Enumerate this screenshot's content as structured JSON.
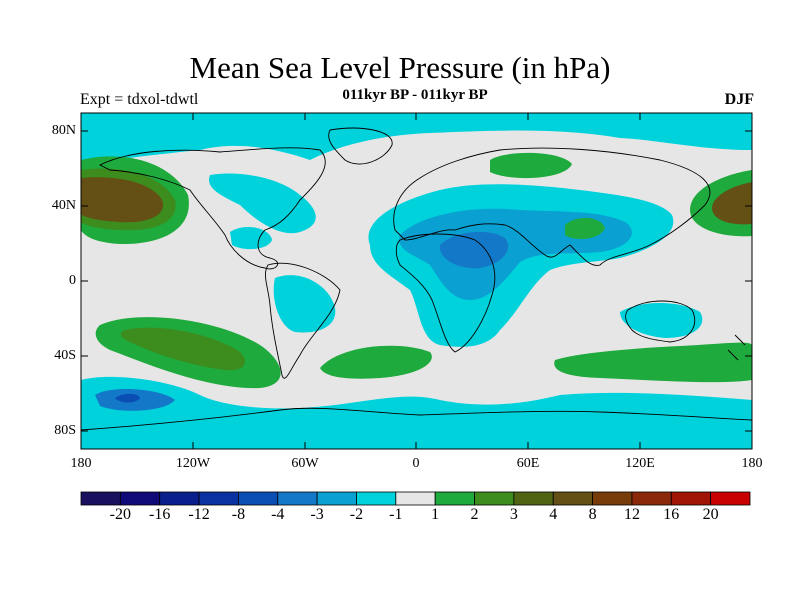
{
  "header": {
    "title": "Mean Sea Level Pressure (in hPa)",
    "experiment": "Expt = tdxol-tdwtl",
    "period": "011kyr BP - 011kyr BP",
    "season": "DJF"
  },
  "map": {
    "lat_labels": [
      "80N",
      "40N",
      "0",
      "40S",
      "80S"
    ],
    "lon_labels": [
      "180",
      "120W",
      "60W",
      "0",
      "60E",
      "120E",
      "180"
    ],
    "background_color": "#e6e6e6",
    "coast_color": "#000000"
  },
  "colorbar": {
    "colors": [
      "#1a1060",
      "#100a78",
      "#0a1e8c",
      "#0a32a0",
      "#0a4eb4",
      "#1478c8",
      "#0aa0d2",
      "#00d2dc",
      "#e6e6e6",
      "#1eaa3c",
      "#3c8c1e",
      "#506414",
      "#645014",
      "#783c0a",
      "#8c280a",
      "#a01404",
      "#c80000"
    ],
    "labels": [
      "-20",
      "-16",
      "-12",
      "-8",
      "-4",
      "-3",
      "-2",
      "-1",
      "1",
      "2",
      "3",
      "4",
      "8",
      "12",
      "16",
      "20"
    ]
  }
}
